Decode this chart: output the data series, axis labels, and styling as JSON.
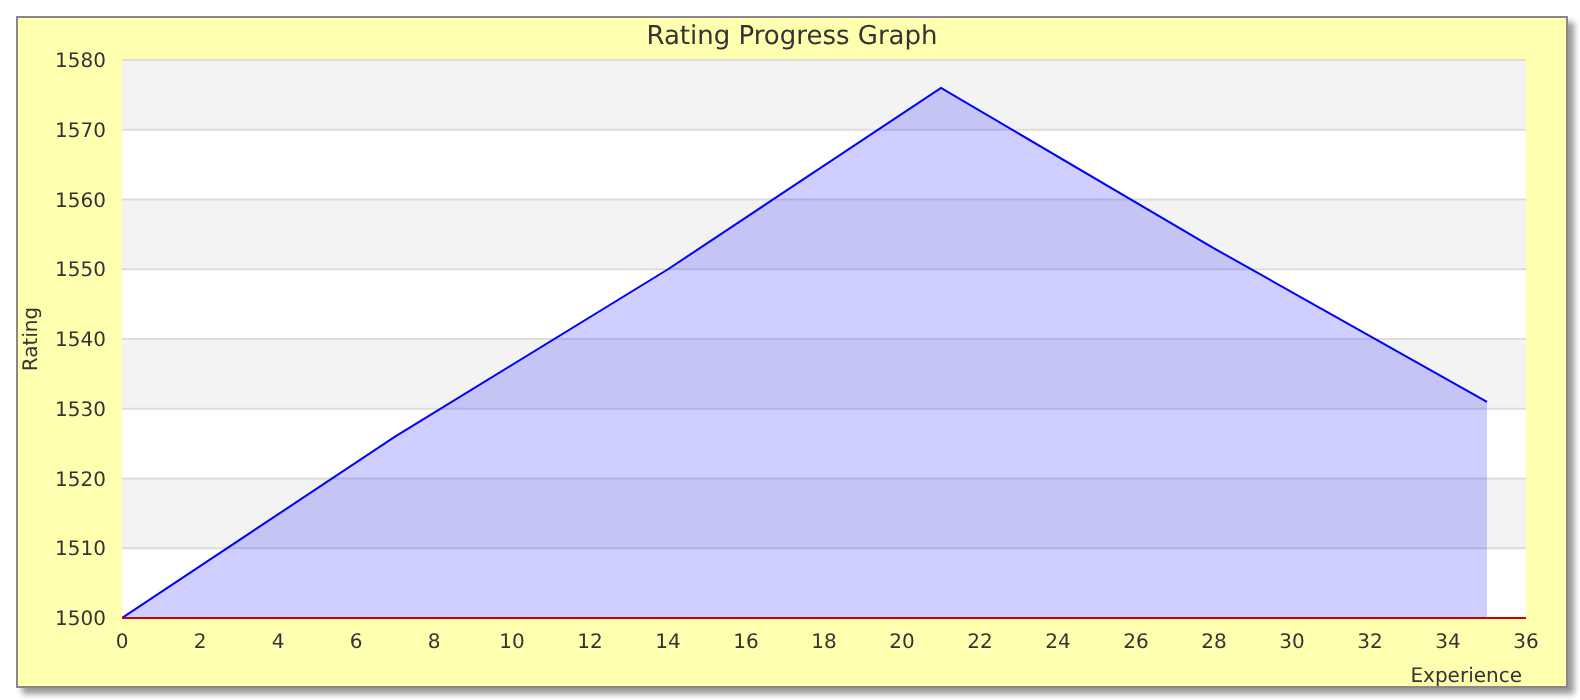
{
  "chart_data": {
    "type": "area",
    "title": "Rating Progress Graph",
    "xlabel": "Experience",
    "ylabel": "Rating",
    "x": [
      0,
      7,
      14,
      21,
      28,
      35
    ],
    "series": [
      {
        "color": "#0000ff",
        "values": [
          1500,
          1526,
          1550,
          1576,
          1553,
          1531
        ]
      }
    ],
    "xlim": [
      0,
      36
    ],
    "xticks": [
      0,
      2,
      4,
      6,
      8,
      10,
      12,
      14,
      16,
      18,
      20,
      22,
      24,
      26,
      28,
      30,
      32,
      34,
      36
    ],
    "ylim": [
      1500,
      1580
    ],
    "yticks": [
      1500,
      1510,
      1520,
      1530,
      1540,
      1550,
      1560,
      1570,
      1580
    ],
    "grid": "y"
  }
}
